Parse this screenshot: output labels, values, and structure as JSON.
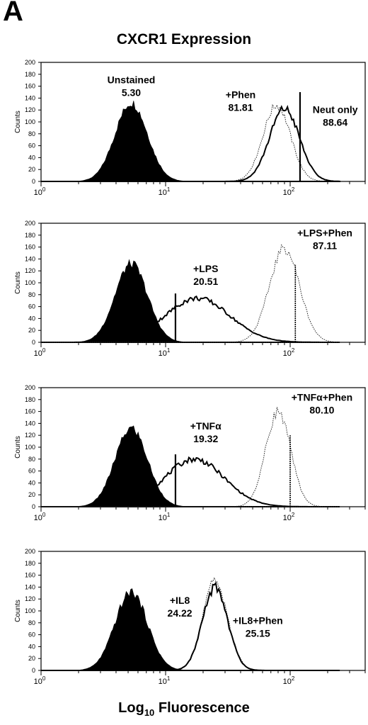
{
  "panel_letter": "A",
  "title": "CXCR1 Expression",
  "xlabel": {
    "prefix": "Log",
    "sub": "10",
    "suffix": "Fluorescence"
  },
  "chart_data": [
    {
      "type": "histogram",
      "ylabel": "Counts",
      "x_scale": "log",
      "xlim": [
        1,
        400
      ],
      "ylim": [
        0,
        200
      ],
      "y_ticks": [
        0,
        20,
        40,
        60,
        80,
        100,
        120,
        140,
        160,
        180,
        200
      ],
      "x_ticks": [
        "10^0",
        "10^1",
        "10^2"
      ],
      "series": [
        {
          "style": "filled",
          "center": 5.3,
          "height": 132,
          "width": 0.13
        },
        {
          "style": "dotted",
          "center": 78,
          "height": 128,
          "width": 0.11
        },
        {
          "style": "solid",
          "center": 90,
          "height": 122,
          "width": 0.12,
          "spike": {
            "x": 120,
            "y": 150
          }
        }
      ],
      "annotations": [
        {
          "name": "Unstained",
          "value": "5.30",
          "ax": 5.3,
          "ay": 165
        },
        {
          "name": "+Phen",
          "value": "81.81",
          "ax": 40,
          "ay": 140
        },
        {
          "name": "Neut only",
          "value": "88.64",
          "ax": 230,
          "ay": 115
        }
      ]
    },
    {
      "type": "histogram",
      "ylabel": "Counts",
      "x_scale": "log",
      "xlim": [
        1,
        400
      ],
      "ylim": [
        0,
        200
      ],
      "y_ticks": [
        0,
        20,
        40,
        60,
        80,
        100,
        120,
        140,
        160,
        180,
        200
      ],
      "x_ticks": [
        "10^0",
        "10^1",
        "10^2"
      ],
      "series": [
        {
          "style": "filled",
          "center": 5.3,
          "height": 132,
          "width": 0.13
        },
        {
          "style": "solid",
          "center": 18,
          "height": 74,
          "width": 0.26,
          "spike": {
            "x": 12,
            "y": 82
          }
        },
        {
          "style": "dotted",
          "center": 90,
          "height": 158,
          "width": 0.12,
          "spike": {
            "x": 110,
            "y": 130
          }
        }
      ],
      "annotations": [
        {
          "name": "+LPS",
          "value": "20.51",
          "ax": 21,
          "ay": 118
        },
        {
          "name": "+LPS+Phen",
          "value": "87.11",
          "ax": 190,
          "ay": 178
        }
      ]
    },
    {
      "type": "histogram",
      "ylabel": "Counts",
      "x_scale": "log",
      "xlim": [
        1,
        400
      ],
      "ylim": [
        0,
        200
      ],
      "y_ticks": [
        0,
        20,
        40,
        60,
        80,
        100,
        120,
        140,
        160,
        180,
        200
      ],
      "x_ticks": [
        "10^0",
        "10^1",
        "10^2"
      ],
      "series": [
        {
          "style": "filled",
          "center": 5.3,
          "height": 132,
          "width": 0.13
        },
        {
          "style": "solid",
          "center": 17,
          "height": 80,
          "width": 0.24,
          "spike": {
            "x": 12,
            "y": 88
          }
        },
        {
          "style": "dotted",
          "center": 80,
          "height": 160,
          "width": 0.1,
          "spike": {
            "x": 100,
            "y": 120
          }
        }
      ],
      "annotations": [
        {
          "name": "+TNFα",
          "value": "19.32",
          "ax": 21,
          "ay": 130
        },
        {
          "name": "+TNFα+Phen",
          "value": "80.10",
          "ax": 180,
          "ay": 178
        }
      ]
    },
    {
      "type": "histogram",
      "ylabel": "Counts",
      "x_scale": "log",
      "xlim": [
        1,
        400
      ],
      "ylim": [
        0,
        200
      ],
      "y_ticks": [
        0,
        20,
        40,
        60,
        80,
        100,
        120,
        140,
        160,
        180,
        200
      ],
      "x_ticks": [
        "10^0",
        "10^1",
        "10^2"
      ],
      "series": [
        {
          "style": "filled",
          "center": 5.3,
          "height": 132,
          "width": 0.13
        },
        {
          "style": "dotted",
          "center": 25,
          "height": 150,
          "width": 0.1
        },
        {
          "style": "solid",
          "center": 25,
          "height": 140,
          "width": 0.1
        }
      ],
      "annotations": [
        {
          "name": "+IL8",
          "value": "24.22",
          "ax": 13,
          "ay": 112
        },
        {
          "name": "+IL8+Phen",
          "value": "25.15",
          "ax": 55,
          "ay": 78
        }
      ]
    }
  ]
}
